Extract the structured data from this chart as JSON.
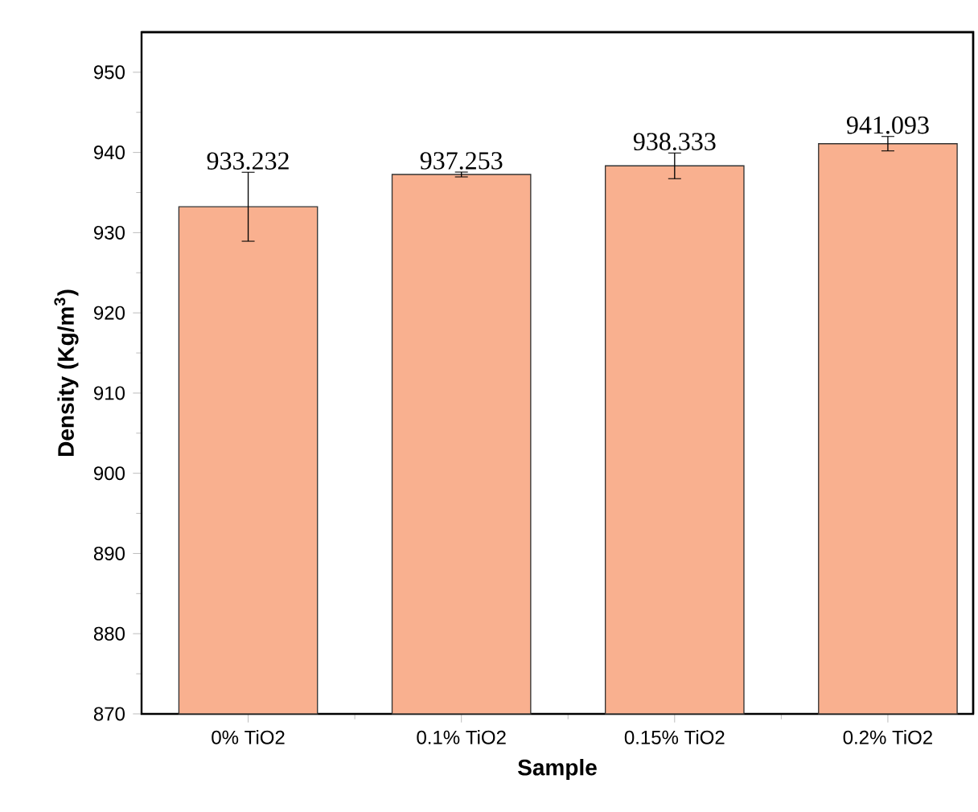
{
  "chart_data": {
    "type": "bar",
    "xlabel": "Sample",
    "ylabel": "Density (Kg/m$^{3}$)",
    "categories": [
      "0% TiO2",
      "0.1% TiO2",
      "0.15% TiO2",
      "0.2% TiO2"
    ],
    "values": [
      933.232,
      937.253,
      938.333,
      941.093
    ],
    "errors": [
      4.3,
      0.3,
      1.6,
      0.9
    ],
    "color": "#f9b08f",
    "ylim": [
      870,
      955
    ],
    "yticks": [
      870,
      880,
      890,
      900,
      910,
      920,
      930,
      940,
      950
    ],
    "data_labels": true,
    "grid": false
  }
}
